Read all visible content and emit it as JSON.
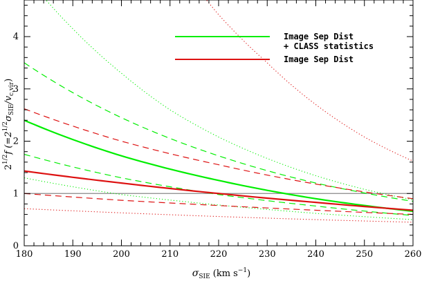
{
  "chart_data": {
    "type": "line",
    "xlabel": "σSIE (km s−1)",
    "xlabel_parts": {
      "sym": "σ",
      "sub": "SIE",
      "unit_open": " (km s",
      "sup": "−1",
      "unit_close": ")"
    },
    "ylabel": "21/2f (=21/2σSIE/vc,vir)",
    "ylabel_parts": {
      "a": "2",
      "a_sup": "1/2",
      "b": "f (=2",
      "b_sup": "1/2",
      "c": "σ",
      "c_sub": "SIE",
      "d": "/v",
      "d_sub": "c,vir",
      "e": ")"
    },
    "xlim": [
      180,
      260
    ],
    "ylim": [
      0,
      4.7
    ],
    "xticks": [
      180,
      190,
      200,
      210,
      220,
      230,
      240,
      250,
      260
    ],
    "xtick_labels": [
      "180",
      "190",
      "200",
      "210",
      "220",
      "230",
      "240",
      "250",
      "260"
    ],
    "yticks": [
      0,
      1,
      2,
      3,
      4
    ],
    "ytick_labels": [
      "0",
      "1",
      "2",
      "3",
      "4"
    ],
    "reference_line": {
      "y": 1.0,
      "color": "#888888"
    },
    "legend": {
      "placement": "top-right",
      "entries": [
        {
          "line1": "Image Sep Dist",
          "line2": "+ CLASS statistics",
          "color": "#00ee00"
        },
        {
          "line1": "Image Sep Dist",
          "line2": "",
          "color": "#dd1111"
        }
      ]
    },
    "series": [
      {
        "color": "#00ee00",
        "style": "solid",
        "x": [
          180,
          200,
          220,
          240,
          260
        ],
        "y": [
          2.4,
          1.72,
          1.25,
          0.9,
          0.66
        ]
      },
      {
        "color": "#00ee00",
        "style": "dashed",
        "x": [
          180,
          200,
          220,
          240,
          260
        ],
        "y": [
          3.5,
          2.45,
          1.72,
          1.2,
          0.85
        ]
      },
      {
        "color": "#00ee00",
        "style": "dashed",
        "x": [
          180,
          200,
          220,
          240,
          260
        ],
        "y": [
          1.75,
          1.3,
          0.98,
          0.76,
          0.58
        ]
      },
      {
        "color": "#00ee00",
        "style": "dotted",
        "x": [
          180,
          190,
          200,
          210,
          220,
          230,
          240,
          250,
          260
        ],
        "y": [
          5.2,
          4.15,
          3.3,
          2.6,
          2.08,
          1.67,
          1.34,
          1.08,
          0.88
        ]
      },
      {
        "color": "#00ee00",
        "style": "dotted",
        "x": [
          180,
          200,
          220,
          240,
          260
        ],
        "y": [
          1.3,
          0.98,
          0.78,
          0.62,
          0.5
        ]
      },
      {
        "color": "#dd1111",
        "style": "solid",
        "x": [
          180,
          200,
          220,
          240,
          260
        ],
        "y": [
          1.43,
          1.2,
          1.0,
          0.83,
          0.68
        ]
      },
      {
        "color": "#dd1111",
        "style": "dashed",
        "x": [
          180,
          200,
          220,
          240,
          260
        ],
        "y": [
          2.62,
          2.0,
          1.55,
          1.18,
          0.9
        ]
      },
      {
        "color": "#dd1111",
        "style": "dashed",
        "x": [
          180,
          200,
          220,
          240,
          260
        ],
        "y": [
          1.0,
          0.87,
          0.77,
          0.68,
          0.6
        ]
      },
      {
        "color": "#dd1111",
        "style": "dotted",
        "x": [
          215,
          220,
          230,
          240,
          250,
          260
        ],
        "y": [
          5.0,
          4.42,
          3.5,
          2.7,
          2.08,
          1.62
        ]
      },
      {
        "color": "#dd1111",
        "style": "dotted",
        "x": [
          180,
          200,
          220,
          240,
          260
        ],
        "y": [
          0.71,
          0.63,
          0.56,
          0.5,
          0.45
        ]
      }
    ]
  }
}
